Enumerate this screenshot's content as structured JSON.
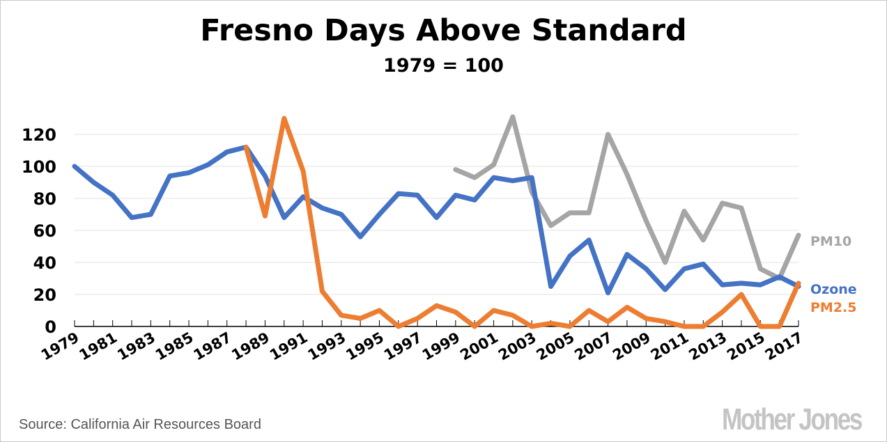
{
  "chart_data": {
    "type": "line",
    "title": "Fresno Days Above Standard",
    "subtitle": "1979 = 100",
    "xlabel": "",
    "ylabel": "",
    "xlim": [
      1979,
      2017
    ],
    "ylim": [
      0,
      130
    ],
    "yticks": [
      0,
      20,
      40,
      60,
      80,
      100,
      120
    ],
    "xticks": [
      1979,
      1981,
      1983,
      1985,
      1987,
      1989,
      1991,
      1993,
      1995,
      1997,
      1999,
      2001,
      2003,
      2005,
      2007,
      2009,
      2011,
      2013,
      2015,
      2017
    ],
    "grid": true,
    "legend": "inline-right",
    "series": [
      {
        "name": "PM10",
        "color": "#a5a5a5",
        "start": 1999,
        "values": [
          98,
          93,
          101,
          131,
          84,
          63,
          71,
          71,
          120,
          95,
          66,
          40,
          72,
          54,
          77,
          74,
          36,
          30,
          57
        ]
      },
      {
        "name": "Ozone",
        "color": "#4472c4",
        "start": 1979,
        "values": [
          100,
          90,
          82,
          68,
          70,
          94,
          96,
          101,
          109,
          112,
          94,
          68,
          81,
          74,
          70,
          56,
          70,
          83,
          82,
          68,
          82,
          79,
          93,
          91,
          93,
          25,
          44,
          54,
          21,
          45,
          36,
          23,
          36,
          39,
          26,
          27,
          26,
          31,
          25
        ]
      },
      {
        "name": "PM2.5",
        "color": "#ed7d31",
        "start": 1988,
        "values": [
          112,
          69,
          130,
          97,
          22,
          7,
          5,
          10,
          0,
          5,
          13,
          9,
          0,
          10,
          7,
          0,
          2,
          0,
          10,
          3,
          12,
          5,
          3,
          0,
          0,
          9,
          20,
          0,
          0,
          27
        ]
      }
    ]
  },
  "footer": {
    "source": "Source: California Air Resources Board",
    "logo": "Mother Jones"
  }
}
